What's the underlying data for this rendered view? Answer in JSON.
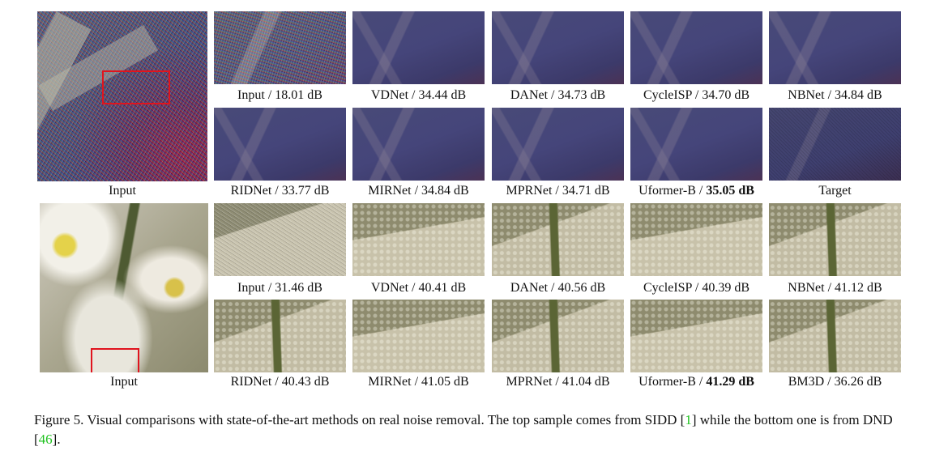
{
  "sidd": {
    "input_label": "Input",
    "row1": [
      {
        "method": "Input",
        "psnr": "18.01 dB",
        "best": false
      },
      {
        "method": "VDNet",
        "psnr": "34.44 dB",
        "best": false
      },
      {
        "method": "DANet",
        "psnr": "34.73 dB",
        "best": false
      },
      {
        "method": "CycleISP",
        "psnr": "34.70 dB",
        "best": false
      },
      {
        "method": "NBNet",
        "psnr": "34.84 dB",
        "best": false
      }
    ],
    "row2": [
      {
        "method": "RIDNet",
        "psnr": "33.77 dB",
        "best": false
      },
      {
        "method": "MIRNet",
        "psnr": "34.84 dB",
        "best": false
      },
      {
        "method": "MPRNet",
        "psnr": "34.71 dB",
        "best": false
      },
      {
        "method": "Uformer-B",
        "psnr": "35.05 dB",
        "best": true
      },
      {
        "method": "Target",
        "psnr": "",
        "best": false
      }
    ]
  },
  "dnd": {
    "input_label": "Input",
    "row1": [
      {
        "method": "Input",
        "psnr": "31.46 dB",
        "best": false
      },
      {
        "method": "VDNet",
        "psnr": "40.41 dB",
        "best": false
      },
      {
        "method": "DANet",
        "psnr": "40.56 dB",
        "best": false
      },
      {
        "method": "CycleISP",
        "psnr": "40.39 dB",
        "best": false
      },
      {
        "method": "NBNet",
        "psnr": "41.12 dB",
        "best": false
      }
    ],
    "row2": [
      {
        "method": "RIDNet",
        "psnr": "40.43 dB",
        "best": false
      },
      {
        "method": "MIRNet",
        "psnr": "41.05 dB",
        "best": false
      },
      {
        "method": "MPRNet",
        "psnr": "41.04 dB",
        "best": false
      },
      {
        "method": "Uformer-B",
        "psnr": "41.29 dB",
        "best": true
      },
      {
        "method": "BM3D",
        "psnr": "36.26 dB",
        "best": false
      }
    ]
  },
  "caption": {
    "prefix": "Figure 5. Visual comparisons with state-of-the-art methods on real noise removal. The top sample comes from SIDD [",
    "ref1": "1",
    "middle": "] while the bottom one is from DND [",
    "ref2": "46",
    "suffix": "]."
  },
  "colors": {
    "highlight_box": "#e0141e",
    "citation": "#1fc21f"
  }
}
